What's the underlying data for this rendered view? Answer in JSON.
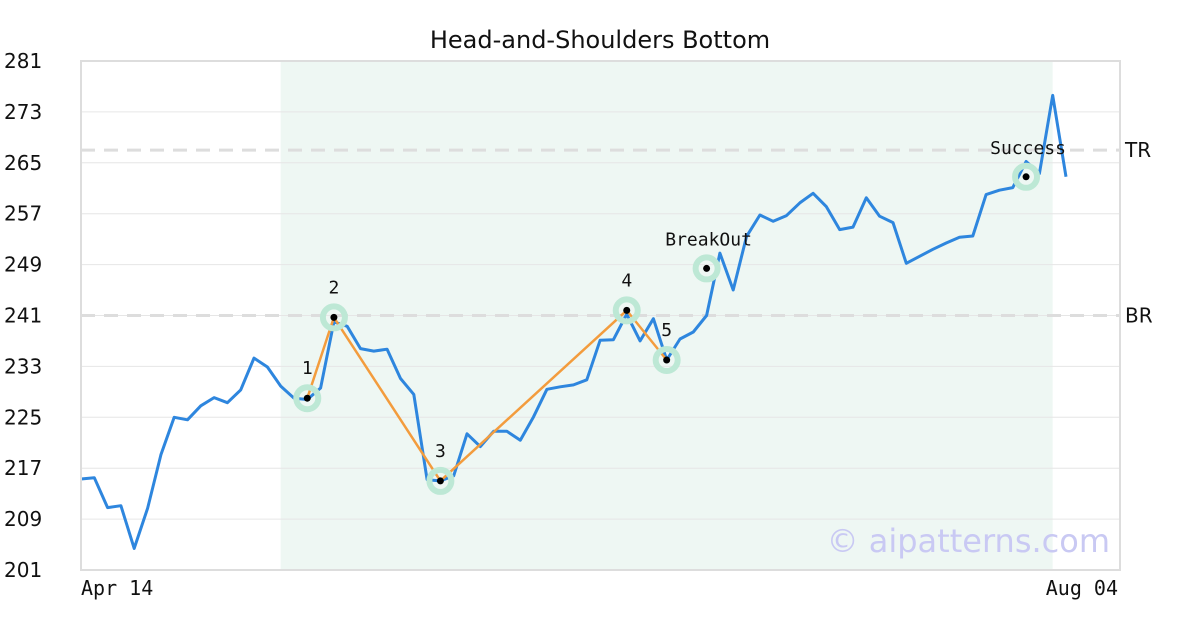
{
  "chart_data": {
    "type": "line",
    "title": "Head-and-Shoulders Bottom",
    "watermark": "© aipatterns.com",
    "x_tick_labels": [
      "Apr 14",
      "Aug 04"
    ],
    "ylim": [
      201,
      281
    ],
    "y_ticks": [
      201,
      209,
      217,
      225,
      233,
      241,
      249,
      257,
      265,
      273,
      281
    ],
    "grid": true,
    "colors": {
      "price": "#2e86de",
      "pattern": "#f39c3d",
      "highlight_band": "#eef7f3",
      "marker_halo": "#bde8d5",
      "reference_line": "#dddddd"
    },
    "price": [
      215.3,
      215.5,
      210.8,
      211.1,
      204.4,
      210.7,
      219.1,
      225.0,
      224.6,
      226.8,
      228.1,
      227.3,
      229.3,
      234.3,
      232.9,
      229.9,
      228.0,
      227.8,
      229.6,
      240.0,
      239.3,
      235.8,
      235.4,
      235.7,
      231.1,
      228.6,
      215.2,
      215.0,
      215.8,
      222.4,
      220.4,
      222.8,
      222.8,
      221.4,
      225.1,
      229.4,
      229.8,
      230.1,
      230.9,
      237.1,
      237.2,
      241.2,
      237.0,
      240.5,
      234.0,
      237.3,
      238.4,
      241.0,
      250.8,
      245.0,
      253.4,
      256.8,
      255.8,
      256.7,
      258.7,
      260.2,
      258.1,
      254.5,
      254.9,
      259.5,
      256.6,
      255.6,
      249.2,
      250.3,
      251.4,
      252.4,
      253.3,
      253.5,
      260.0,
      260.7,
      261.1,
      265.2,
      263.3,
      275.6,
      262.8
    ],
    "highlight_range": [
      15,
      73
    ],
    "pattern_points": [
      {
        "label": "1",
        "x": 17,
        "y": 228.0
      },
      {
        "label": "2",
        "x": 19,
        "y": 240.7
      },
      {
        "label": "3",
        "x": 27,
        "y": 215.0
      },
      {
        "label": "4",
        "x": 41,
        "y": 241.8
      },
      {
        "label": "5",
        "x": 44,
        "y": 234.0
      }
    ],
    "events": [
      {
        "label": "BreakOut",
        "x": 47,
        "y": 248.4
      },
      {
        "label": "Success",
        "x": 71,
        "y": 262.8
      }
    ],
    "reference_lines": [
      {
        "label": "TR",
        "y": 267.0
      },
      {
        "label": "BR",
        "y": 241.0
      }
    ]
  }
}
